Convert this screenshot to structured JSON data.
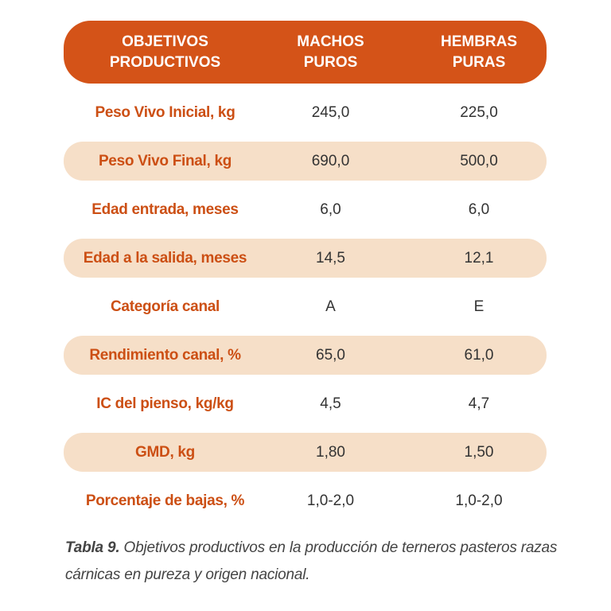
{
  "header": {
    "col1": [
      "OBJETIVOS",
      "PRODUCTIVOS"
    ],
    "col2": [
      "MACHOS",
      "PUROS"
    ],
    "col3": [
      "HEMBRAS",
      "PURAS"
    ]
  },
  "rows": [
    {
      "label": "Peso Vivo Inicial, kg",
      "machos": "245,0",
      "hembras": "225,0"
    },
    {
      "label": "Peso Vivo Final, kg",
      "machos": "690,0",
      "hembras": "500,0"
    },
    {
      "label": "Edad entrada, meses",
      "machos": "6,0",
      "hembras": "6,0"
    },
    {
      "label": "Edad a la salida, meses",
      "machos": "14,5",
      "hembras": "12,1"
    },
    {
      "label": "Categoría canal",
      "machos": "A",
      "hembras": "E"
    },
    {
      "label": "Rendimiento canal, %",
      "machos": "65,0",
      "hembras": "61,0"
    },
    {
      "label": "IC del pienso, kg/kg",
      "machos": "4,5",
      "hembras": "4,7"
    },
    {
      "label": "GMD, kg",
      "machos": "1,80",
      "hembras": "1,50"
    },
    {
      "label": "Porcentaje de bajas, %",
      "machos": "1,0-2,0",
      "hembras": "1,0-2,0"
    }
  ],
  "caption": {
    "label": "Tabla 9.",
    "text": " Objetivos productivos en la producción de terneros pasteros razas cárnicas en pureza y origen nacional."
  },
  "colors": {
    "header_bg": "#d45318",
    "row_shade": "#f6dfc8",
    "label_text": "#cc4f14"
  }
}
